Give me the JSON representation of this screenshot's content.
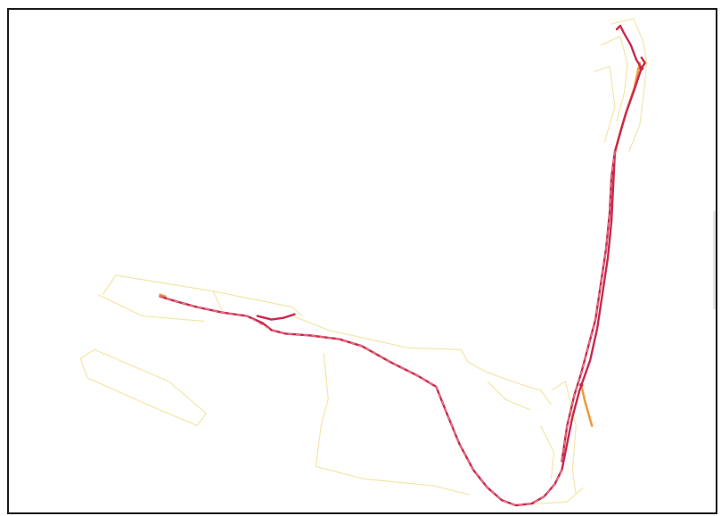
{
  "map": {
    "colors": {
      "frame": "#1a1a1a",
      "background": "#ffffff",
      "route_primary": "#c8284a",
      "route_dash": "#e87a8e",
      "route_highlight": "#f09a3e",
      "boundary_outline": "#f3e6a8"
    },
    "features": [
      "boundary-outlines",
      "gps-route-track",
      "route-branches"
    ]
  }
}
